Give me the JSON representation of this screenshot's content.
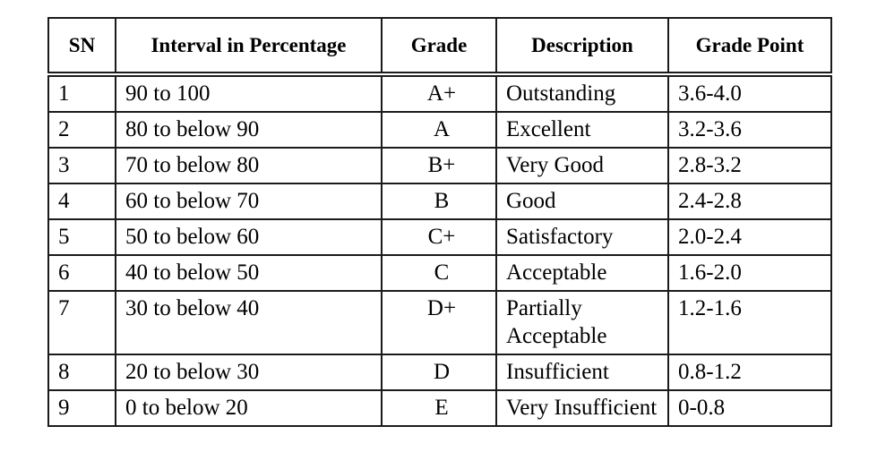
{
  "table": {
    "title": "grading-scale",
    "columns": [
      {
        "key": "sn",
        "label": "SN"
      },
      {
        "key": "interval",
        "label": "Interval in Percentage"
      },
      {
        "key": "grade",
        "label": "Grade"
      },
      {
        "key": "description",
        "label": "Description"
      },
      {
        "key": "grade_point",
        "label": "Grade Point"
      }
    ],
    "rows": [
      {
        "sn": "1",
        "interval": "90 to 100",
        "grade": "A+",
        "description": "Outstanding",
        "grade_point": "3.6-4.0"
      },
      {
        "sn": "2",
        "interval": "80 to below 90",
        "grade": "A",
        "description": "Excellent",
        "grade_point": "3.2-3.6"
      },
      {
        "sn": "3",
        "interval": "70 to below 80",
        "grade": "B+",
        "description": "Very Good",
        "grade_point": "2.8-3.2"
      },
      {
        "sn": "4",
        "interval": "60 to below 70",
        "grade": "B",
        "description": "Good",
        "grade_point": "2.4-2.8"
      },
      {
        "sn": "5",
        "interval": "50 to below 60",
        "grade": "C+",
        "description": "Satisfactory",
        "grade_point": "2.0-2.4"
      },
      {
        "sn": "6",
        "interval": "40 to below 50",
        "grade": "C",
        "description": "Acceptable",
        "grade_point": "1.6-2.0"
      },
      {
        "sn": "7",
        "interval": "30 to below 40",
        "grade": "D+",
        "description": "Partially Acceptable",
        "grade_point": "1.2-1.6"
      },
      {
        "sn": "8",
        "interval": "20 to below 30",
        "grade": "D",
        "description": "Insufficient",
        "grade_point": "0.8-1.2"
      },
      {
        "sn": "9",
        "interval": "0 to below 20",
        "grade": "E",
        "description": "Very Insufficient",
        "grade_point": "0-0.8"
      }
    ],
    "tall_row_sns": [
      "7",
      "9"
    ],
    "colors": {
      "border": "#1b1b1b",
      "text": "#000000",
      "background": "#ffffff"
    }
  }
}
